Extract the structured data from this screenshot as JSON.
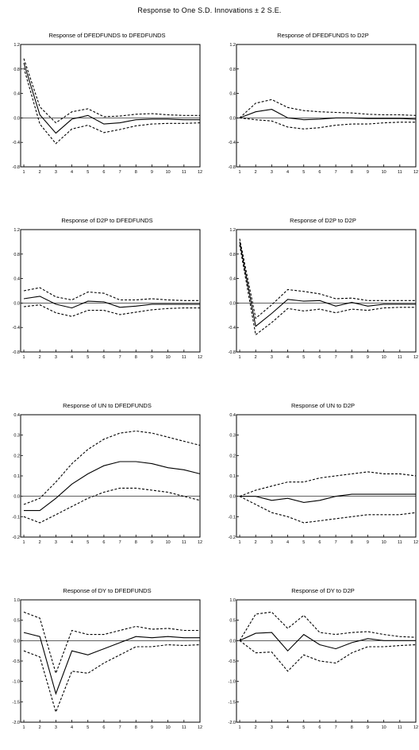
{
  "title": "Response to One S.D. Innovations ± 2 S.E.",
  "chart_data": [
    {
      "type": "line",
      "title": "Response of DFEDFUNDS to DFEDFUNDS",
      "x": [
        1,
        2,
        3,
        4,
        5,
        6,
        7,
        8,
        9,
        10,
        11,
        12
      ],
      "ylim": [
        -0.8,
        1.2
      ],
      "yticks": [
        -0.8,
        -0.4,
        0.0,
        0.4,
        0.8,
        1.2
      ],
      "ytick_labels": [
        "-0.8",
        "-0.4",
        "0.0",
        "0.4",
        "0.8",
        "1.2"
      ],
      "series": [
        {
          "style": "solid",
          "values": [
            0.9,
            0.05,
            -0.25,
            -0.02,
            0.04,
            -0.1,
            -0.08,
            -0.03,
            -0.02,
            -0.02,
            -0.03,
            -0.03
          ]
        },
        {
          "style": "dashed",
          "values": [
            0.97,
            0.18,
            -0.08,
            0.1,
            0.15,
            0.02,
            0.03,
            0.06,
            0.07,
            0.05,
            0.04,
            0.04
          ]
        },
        {
          "style": "dashed",
          "values": [
            0.82,
            -0.1,
            -0.42,
            -0.18,
            -0.12,
            -0.24,
            -0.19,
            -0.13,
            -0.1,
            -0.09,
            -0.09,
            -0.08
          ]
        }
      ]
    },
    {
      "type": "line",
      "title": "Response of DFEDFUNDS to D2P",
      "x": [
        1,
        2,
        3,
        4,
        5,
        6,
        7,
        8,
        9,
        10,
        11,
        12
      ],
      "ylim": [
        -0.8,
        1.2
      ],
      "yticks": [
        -0.8,
        -0.4,
        0.0,
        0.4,
        0.8,
        1.2
      ],
      "ytick_labels": [
        "-0.8",
        "-0.4",
        "0.0",
        "0.4",
        "0.8",
        "1.2"
      ],
      "series": [
        {
          "style": "solid",
          "values": [
            0.0,
            0.1,
            0.14,
            0.0,
            -0.03,
            -0.02,
            0.0,
            0.0,
            -0.01,
            -0.01,
            -0.01,
            -0.02
          ]
        },
        {
          "style": "dashed",
          "values": [
            0.0,
            0.24,
            0.3,
            0.17,
            0.12,
            0.1,
            0.09,
            0.08,
            0.06,
            0.05,
            0.05,
            0.04
          ]
        },
        {
          "style": "dashed",
          "values": [
            0.0,
            -0.03,
            -0.05,
            -0.15,
            -0.18,
            -0.16,
            -0.12,
            -0.1,
            -0.1,
            -0.08,
            -0.07,
            -0.07
          ]
        }
      ]
    },
    {
      "type": "line",
      "title": "Response of D2P to DFEDFUNDS",
      "x": [
        1,
        2,
        3,
        4,
        5,
        6,
        7,
        8,
        9,
        10,
        11,
        12
      ],
      "ylim": [
        -0.8,
        1.2
      ],
      "yticks": [
        -0.8,
        -0.4,
        0.0,
        0.4,
        0.8,
        1.2
      ],
      "ytick_labels": [
        "-0.8",
        "-0.4",
        "0.0",
        "0.4",
        "0.8",
        "1.2"
      ],
      "series": [
        {
          "style": "solid",
          "values": [
            0.07,
            0.11,
            -0.02,
            -0.08,
            0.03,
            0.02,
            -0.07,
            -0.05,
            -0.02,
            -0.02,
            -0.02,
            -0.02
          ]
        },
        {
          "style": "dashed",
          "values": [
            0.2,
            0.25,
            0.1,
            0.05,
            0.18,
            0.16,
            0.05,
            0.05,
            0.07,
            0.05,
            0.04,
            0.04
          ]
        },
        {
          "style": "dashed",
          "values": [
            -0.06,
            -0.03,
            -0.16,
            -0.22,
            -0.12,
            -0.12,
            -0.19,
            -0.15,
            -0.11,
            -0.09,
            -0.08,
            -0.08
          ]
        }
      ]
    },
    {
      "type": "line",
      "title": "Response of D2P to D2P",
      "x": [
        1,
        2,
        3,
        4,
        5,
        6,
        7,
        8,
        9,
        10,
        11,
        12
      ],
      "ylim": [
        -0.8,
        1.2
      ],
      "yticks": [
        -0.8,
        -0.4,
        0.0,
        0.4,
        0.8,
        1.2
      ],
      "ytick_labels": [
        "-0.8",
        "-0.4",
        "0.0",
        "0.4",
        "0.8",
        "1.2"
      ],
      "series": [
        {
          "style": "solid",
          "values": [
            1.0,
            -0.38,
            -0.17,
            0.06,
            0.03,
            0.04,
            -0.05,
            0.01,
            -0.05,
            -0.02,
            -0.02,
            -0.02
          ]
        },
        {
          "style": "dashed",
          "values": [
            1.05,
            -0.25,
            -0.03,
            0.22,
            0.19,
            0.15,
            0.07,
            0.08,
            0.04,
            0.04,
            0.04,
            0.04
          ]
        },
        {
          "style": "dashed",
          "values": [
            0.95,
            -0.52,
            -0.32,
            -0.09,
            -0.13,
            -0.1,
            -0.16,
            -0.1,
            -0.12,
            -0.08,
            -0.07,
            -0.07
          ]
        }
      ]
    },
    {
      "type": "line",
      "title": "Response of UN to DFEDFUNDS",
      "x": [
        1,
        2,
        3,
        4,
        5,
        6,
        7,
        8,
        9,
        10,
        11,
        12
      ],
      "ylim": [
        -0.2,
        0.4
      ],
      "yticks": [
        -0.2,
        -0.1,
        0.0,
        0.1,
        0.2,
        0.3,
        0.4
      ],
      "ytick_labels": [
        "-0.2",
        "-0.1",
        "0.0",
        "0.1",
        "0.2",
        "0.3",
        "0.4"
      ],
      "series": [
        {
          "style": "solid",
          "values": [
            -0.07,
            -0.07,
            -0.01,
            0.06,
            0.11,
            0.15,
            0.17,
            0.17,
            0.16,
            0.14,
            0.13,
            0.11
          ]
        },
        {
          "style": "dashed",
          "values": [
            -0.04,
            -0.01,
            0.07,
            0.16,
            0.23,
            0.28,
            0.31,
            0.32,
            0.31,
            0.29,
            0.27,
            0.25
          ]
        },
        {
          "style": "dashed",
          "values": [
            -0.1,
            -0.13,
            -0.09,
            -0.05,
            -0.01,
            0.02,
            0.04,
            0.04,
            0.03,
            0.02,
            0.0,
            -0.02
          ]
        }
      ]
    },
    {
      "type": "line",
      "title": "Response of UN to D2P",
      "x": [
        1,
        2,
        3,
        4,
        5,
        6,
        7,
        8,
        9,
        10,
        11,
        12
      ],
      "ylim": [
        -0.2,
        0.4
      ],
      "yticks": [
        -0.2,
        -0.1,
        0.0,
        0.1,
        0.2,
        0.3,
        0.4
      ],
      "ytick_labels": [
        "-0.2",
        "-0.1",
        "0.0",
        "0.1",
        "0.2",
        "0.3",
        "0.4"
      ],
      "series": [
        {
          "style": "solid",
          "values": [
            0.0,
            0.0,
            -0.02,
            -0.01,
            -0.03,
            -0.02,
            0.0,
            0.01,
            0.01,
            0.01,
            0.01,
            0.01
          ]
        },
        {
          "style": "dashed",
          "values": [
            0.0,
            0.03,
            0.05,
            0.07,
            0.07,
            0.09,
            0.1,
            0.11,
            0.12,
            0.11,
            0.11,
            0.1
          ]
        },
        {
          "style": "dashed",
          "values": [
            0.0,
            -0.04,
            -0.08,
            -0.1,
            -0.13,
            -0.12,
            -0.11,
            -0.1,
            -0.09,
            -0.09,
            -0.09,
            -0.08
          ]
        }
      ]
    },
    {
      "type": "line",
      "title": "Response of DY to DFEDFUNDS",
      "x": [
        1,
        2,
        3,
        4,
        5,
        6,
        7,
        8,
        9,
        10,
        11,
        12
      ],
      "ylim": [
        -2.0,
        1.0
      ],
      "yticks": [
        -2.0,
        -1.5,
        -1.0,
        -0.5,
        0.0,
        0.5,
        1.0
      ],
      "ytick_labels": [
        "-2.0",
        "-1.5",
        "-1.0",
        "-0.5",
        "0.0",
        "0.5",
        "1.0"
      ],
      "series": [
        {
          "style": "solid",
          "values": [
            0.2,
            0.1,
            -1.3,
            -0.25,
            -0.35,
            -0.2,
            -0.05,
            0.1,
            0.07,
            0.1,
            0.07,
            0.07
          ]
        },
        {
          "style": "dashed",
          "values": [
            0.7,
            0.55,
            -0.8,
            0.25,
            0.15,
            0.15,
            0.25,
            0.35,
            0.28,
            0.3,
            0.25,
            0.25
          ]
        },
        {
          "style": "dashed",
          "values": [
            -0.25,
            -0.4,
            -1.75,
            -0.75,
            -0.8,
            -0.55,
            -0.35,
            -0.15,
            -0.15,
            -0.1,
            -0.12,
            -0.1
          ]
        }
      ]
    },
    {
      "type": "line",
      "title": "Response of DY to D2P",
      "x": [
        1,
        2,
        3,
        4,
        5,
        6,
        7,
        8,
        9,
        10,
        11,
        12
      ],
      "ylim": [
        -2.0,
        1.0
      ],
      "yticks": [
        -2.0,
        -1.5,
        -1.0,
        -0.5,
        0.0,
        0.5,
        1.0
      ],
      "ytick_labels": [
        "-2.0",
        "-1.5",
        "-1.0",
        "-0.5",
        "0.0",
        "0.5",
        "1.0"
      ],
      "series": [
        {
          "style": "solid",
          "values": [
            0.0,
            0.18,
            0.2,
            -0.25,
            0.15,
            -0.1,
            -0.2,
            -0.05,
            0.05,
            0.0,
            0.0,
            0.0
          ]
        },
        {
          "style": "dashed",
          "values": [
            0.0,
            0.65,
            0.7,
            0.3,
            0.62,
            0.2,
            0.15,
            0.2,
            0.22,
            0.15,
            0.1,
            0.08
          ]
        },
        {
          "style": "dashed",
          "values": [
            0.0,
            -0.3,
            -0.28,
            -0.75,
            -0.35,
            -0.5,
            -0.55,
            -0.3,
            -0.15,
            -0.15,
            -0.12,
            -0.1
          ]
        }
      ]
    }
  ]
}
